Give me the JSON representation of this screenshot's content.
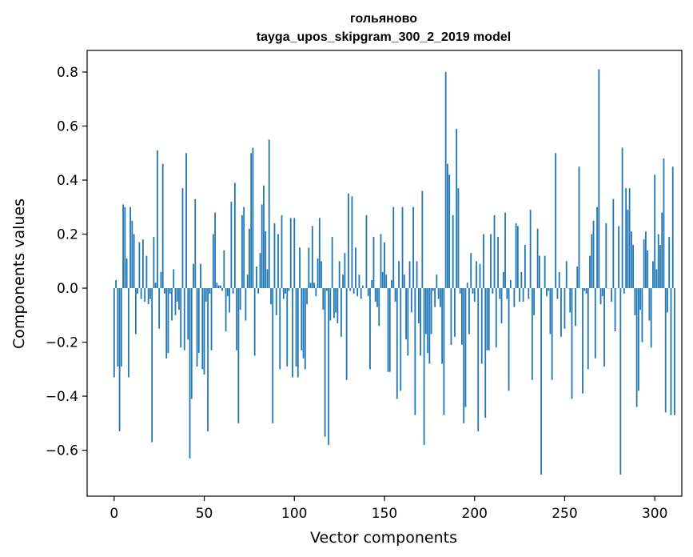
{
  "chart_data": {
    "type": "bar",
    "title_line1": "гольяново",
    "title_line2": "tayga_upos_skipgram_300_2_2019 model",
    "xlabel": "Vector components",
    "ylabel": "Components values",
    "xlim": [
      -15,
      315
    ],
    "ylim": [
      -0.77,
      0.88
    ],
    "xticks": [
      0,
      50,
      100,
      150,
      200,
      250,
      300
    ],
    "xtick_labels": [
      "0",
      "50",
      "100",
      "150",
      "200",
      "250",
      "300"
    ],
    "yticks": [
      -0.6,
      -0.4,
      -0.2,
      0.0,
      0.2,
      0.4,
      0.6,
      0.8
    ],
    "ytick_labels": [
      "−0.6",
      "−0.4",
      "−0.2",
      "0.0",
      "0.2",
      "0.4",
      "0.6",
      "0.8"
    ],
    "bar_color": "#1f77b4",
    "values": [
      -0.33,
      0.03,
      -0.29,
      -0.53,
      -0.29,
      0.31,
      0.3,
      0.11,
      -0.33,
      0.3,
      0.25,
      0.2,
      -0.17,
      -0.02,
      0.17,
      -0.04,
      0.18,
      -0.05,
      0.12,
      -0.06,
      -0.04,
      -0.57,
      0.19,
      0.02,
      0.51,
      -0.15,
      0.06,
      0.46,
      -0.02,
      -0.26,
      -0.24,
      -0.02,
      -0.12,
      0.07,
      -0.1,
      -0.05,
      -0.08,
      -0.22,
      0.37,
      -0.23,
      0.5,
      -0.19,
      -0.63,
      -0.41,
      0.09,
      0.33,
      -0.29,
      -0.24,
      0.09,
      -0.3,
      -0.32,
      -0.05,
      -0.53,
      -0.02,
      -0.23,
      0.2,
      0.28,
      0.02,
      0.01,
      0.01,
      -0.01,
      0.14,
      -0.16,
      -0.03,
      -0.09,
      0.32,
      -0.02,
      0.39,
      -0.23,
      -0.5,
      -0.08,
      0.27,
      0.3,
      -0.12,
      0.05,
      0.22,
      0.5,
      0.52,
      -0.25,
      0.08,
      -0.02,
      0.13,
      0.31,
      0.38,
      0.21,
      0.07,
      0.55,
      -0.06,
      -0.5,
      0.24,
      -0.1,
      0.2,
      -0.3,
      0.27,
      -0.04,
      -0.02,
      -0.29,
      -0.01,
      0.26,
      -0.33,
      0.26,
      -0.29,
      -0.33,
      0.15,
      -0.23,
      -0.26,
      -0.3,
      -0.06,
      0.15,
      0.02,
      0.23,
      0.02,
      -0.03,
      0.11,
      0.26,
      0.1,
      -0.08,
      -0.55,
      -0.01,
      -0.58,
      -0.12,
      0.19,
      -0.11,
      -0.09,
      -0.13,
      0.1,
      -0.18,
      0.05,
      0.13,
      -0.34,
      0.35,
      -0.01,
      0.34,
      -0.02,
      0.15,
      -0.03,
      0.05,
      -0.04,
      0.01,
      0.0,
      0.27,
      -0.03,
      -0.3,
      0.03,
      0.19,
      -0.05,
      -0.07,
      -0.14,
      0.2,
      0.06,
      0.17,
      0.05,
      -0.31,
      -0.31,
      0.03,
      0.3,
      -0.05,
      -0.41,
      0.1,
      -0.38,
      0.3,
      0.05,
      -0.19,
      -0.25,
      0.1,
      -0.09,
      0.3,
      -0.47,
      0.1,
      -0.13,
      -0.25,
      0.36,
      -0.58,
      -0.17,
      -0.24,
      -0.28,
      -0.17,
      -0.01,
      -0.07,
      0.05,
      -0.04,
      -0.07,
      -0.28,
      -0.47,
      0.8,
      0.46,
      0.42,
      -0.21,
      0.27,
      -0.18,
      0.59,
      0.37,
      -0.02,
      -0.21,
      -0.5,
      -0.44,
      0.02,
      -0.17,
      0.13,
      -0.02,
      -0.05,
      0.1,
      -0.53,
      0.09,
      -0.28,
      0.2,
      -0.48,
      -0.23,
      -0.23,
      0.2,
      -0.02,
      0.27,
      -0.22,
      0.19,
      -0.04,
      -0.13,
      0.06,
      0.28,
      -0.04,
      -0.38,
      0.03,
      0.0,
      -0.07,
      0.24,
      0.23,
      -0.05,
      0.06,
      -0.05,
      0.16,
      0.0,
      -0.04,
      0.29,
      -0.34,
      -0.1,
      0.0,
      0.22,
      0.12,
      -0.69,
      0.0,
      0.12,
      -0.03,
      -0.01,
      -0.17,
      -0.34,
      0.0,
      0.5,
      -0.04,
      0.06,
      -0.18,
      0.0,
      -0.15,
      0.1,
      0.0,
      -0.09,
      -0.41,
      0.0,
      -0.14,
      0.08,
      0.45,
      0.0,
      -0.39,
      -0.01,
      -0.02,
      -0.3,
      0.12,
      0.2,
      0.25,
      -0.26,
      0.3,
      0.81,
      -0.06,
      -0.03,
      -0.29,
      0.24,
      0.0,
      0.0,
      -0.05,
      0.33,
      -0.16,
      0.0,
      0.23,
      -0.69,
      0.52,
      -0.02,
      0.37,
      0.29,
      0.37,
      0.21,
      0.16,
      -0.1,
      -0.44,
      -0.38,
      -0.08,
      -0.2,
      0.18,
      0.21,
      0.14,
      -0.12,
      -0.22,
      0.1,
      0.42,
      0.07,
      0.2,
      0.16,
      0.28,
      0.48,
      -0.46,
      -0.09,
      0.19,
      -0.47,
      0.45,
      -0.47
    ]
  }
}
